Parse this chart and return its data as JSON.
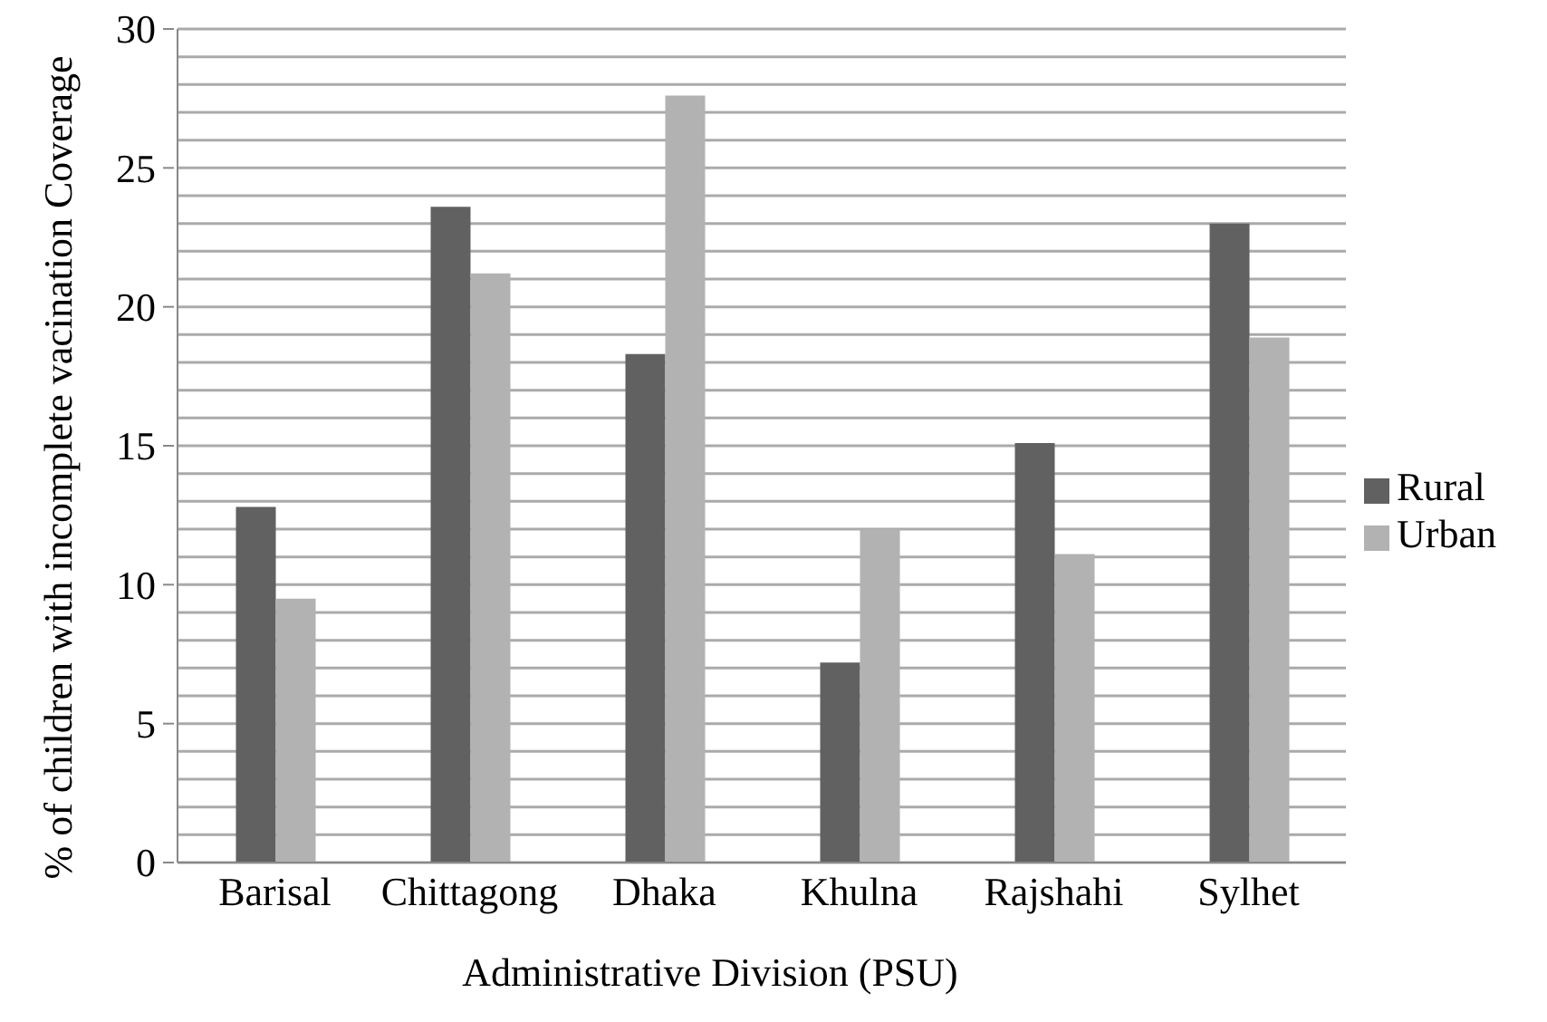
{
  "chart_data": {
    "type": "bar",
    "xlabel": "Administrative Division (PSU)",
    "ylabel": "% of children with incomplete vacination Coverage",
    "categories": [
      "Barisal",
      "Chittagong",
      "Dhaka",
      "Khulna",
      "Rajshahi",
      "Sylhet"
    ],
    "series": [
      {
        "name": "Rural",
        "color": "#616161",
        "values": [
          12.8,
          23.6,
          18.3,
          7.2,
          15.1,
          23.0
        ]
      },
      {
        "name": "Urban",
        "color": "#b2b2b2",
        "values": [
          9.5,
          21.2,
          27.6,
          12.0,
          11.1,
          18.9
        ]
      }
    ],
    "ylim": [
      0,
      30
    ],
    "yticks": [
      0,
      {
        "value": 1,
        "label": null
      },
      {
        "value": 2,
        "label": null
      },
      {
        "value": 3,
        "label": null
      },
      {
        "value": 4,
        "label": null
      },
      5,
      {
        "value": 6,
        "label": null
      },
      {
        "value": 7,
        "label": null
      },
      {
        "value": 8,
        "label": null
      },
      {
        "value": 9,
        "label": null
      },
      10,
      {
        "value": 11,
        "label": null
      },
      {
        "value": 12,
        "label": null
      },
      {
        "value": 13,
        "label": null
      },
      {
        "value": 14,
        "label": null
      },
      15,
      {
        "value": 16,
        "label": null
      },
      {
        "value": 17,
        "label": null
      },
      {
        "value": 18,
        "label": null
      },
      {
        "value": 19,
        "label": null
      },
      20,
      {
        "value": 21,
        "label": null
      },
      {
        "value": 22,
        "label": null
      },
      {
        "value": 23,
        "label": null
      },
      {
        "value": 24,
        "label": null
      },
      25,
      {
        "value": 26,
        "label": null
      },
      {
        "value": 27,
        "label": null
      },
      {
        "value": 28,
        "label": null
      },
      {
        "value": 29,
        "label": null
      },
      30
    ],
    "grid": "y",
    "legend": "right"
  }
}
